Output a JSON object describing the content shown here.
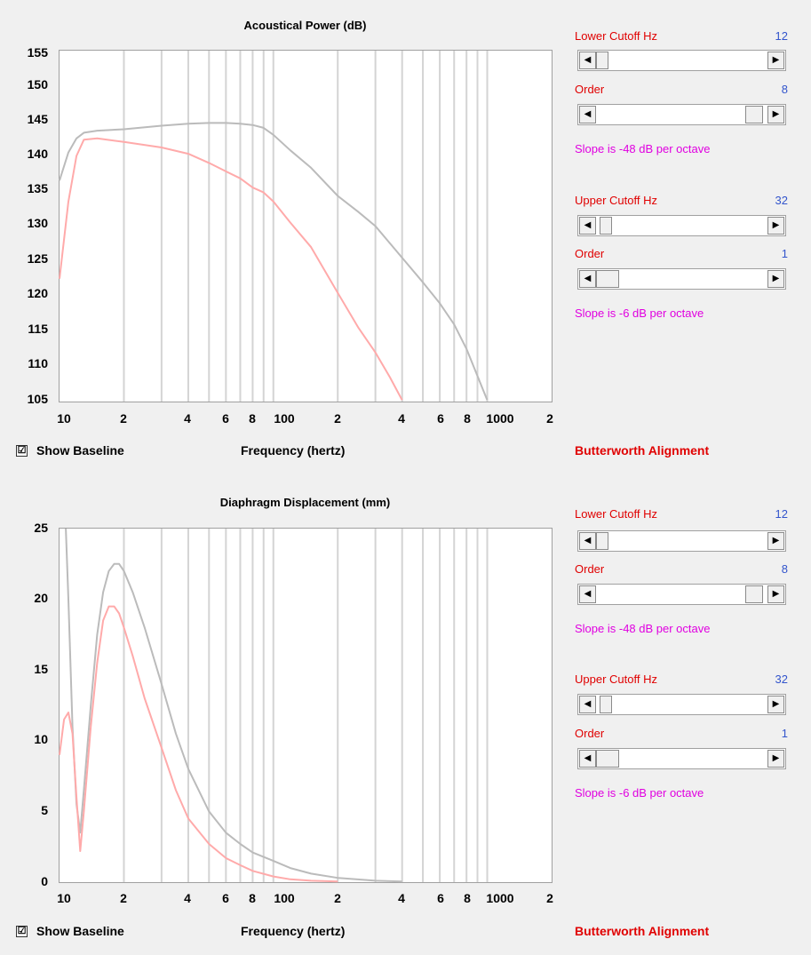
{
  "panels": [
    {
      "title": "Acoustical Power (dB)",
      "y_ticks": [
        "155",
        "150",
        "145",
        "140",
        "135",
        "130",
        "125",
        "120",
        "115",
        "110",
        "105"
      ],
      "x_ticks": [
        "10",
        "2",
        "4",
        "6",
        "8",
        "100",
        "2",
        "4",
        "6",
        "8",
        "1000",
        "2"
      ],
      "xlabel": "Frequency (hertz)",
      "baseline_label": "Show Baseline",
      "baseline_checked": "☑",
      "alignment_label": "Butterworth Alignment",
      "controls": {
        "lower_cutoff_label": "Lower Cutoff  Hz",
        "lower_cutoff_value": "12",
        "lower_order_label": "Order",
        "lower_order_value": "8",
        "lower_slope": "Slope is -48 dB per octave",
        "upper_cutoff_label": "Upper Cutoff  Hz",
        "upper_cutoff_value": "32",
        "upper_order_label": "Order",
        "upper_order_value": "1",
        "upper_slope": "Slope is -6 dB per octave"
      }
    },
    {
      "title": "Diaphragm Displacement (mm)",
      "y_ticks": [
        "25",
        "20",
        "15",
        "10",
        "5",
        "0"
      ],
      "x_ticks": [
        "10",
        "2",
        "4",
        "6",
        "8",
        "100",
        "2",
        "4",
        "6",
        "8",
        "1000",
        "2"
      ],
      "xlabel": "Frequency (hertz)",
      "baseline_label": "Show Baseline",
      "baseline_checked": "☑",
      "alignment_label": "Butterworth Alignment",
      "controls": {
        "lower_cutoff_label": "Lower Cutoff  Hz",
        "lower_cutoff_value": "12",
        "lower_order_label": "Order",
        "lower_order_value": "8",
        "lower_slope": "Slope is -48 dB per octave",
        "upper_cutoff_label": "Upper Cutoff  Hz",
        "upper_cutoff_value": "32",
        "upper_order_label": "Order",
        "upper_order_value": "1",
        "upper_slope": "Slope is -6 dB per octave"
      }
    }
  ],
  "colors": {
    "baseline": "#bbbbbb",
    "response": "#ffaaaa",
    "grid": "#d4d4d4",
    "label_red": "#e00000",
    "value_blue": "#3355cc",
    "slope_magenta": "#e000e0"
  },
  "chart_data": [
    {
      "type": "line",
      "title": "Acoustical Power (dB)",
      "xlabel": "Frequency (hertz)",
      "ylabel": "",
      "xscale": "log",
      "xlim": [
        10,
        2000
      ],
      "ylim": [
        105,
        155
      ],
      "grid": true,
      "series": [
        {
          "color": "#bbbbbb",
          "x": [
            10,
            11,
            12,
            13,
            15,
            20,
            30,
            40,
            50,
            60,
            70,
            80,
            90,
            100,
            120,
            150,
            200,
            250,
            300,
            400,
            500,
            600,
            700,
            800,
            1000
          ],
          "y": [
            136.5,
            140.5,
            142.5,
            143.3,
            143.6,
            143.8,
            144.3,
            144.6,
            144.7,
            144.7,
            144.6,
            144.4,
            144.0,
            143.0,
            140.8,
            138.3,
            134.3,
            132.0,
            130.0,
            125.5,
            122.0,
            119.0,
            116.0,
            112.5,
            105.2
          ]
        },
        {
          "color": "#ffaaaa",
          "x": [
            10,
            11,
            12,
            13,
            15,
            20,
            30,
            40,
            50,
            60,
            70,
            80,
            90,
            100,
            120,
            150,
            200,
            250,
            300,
            350,
            400
          ],
          "y": [
            122.5,
            133.5,
            140.0,
            142.3,
            142.5,
            142.0,
            141.2,
            140.3,
            139.0,
            137.8,
            136.8,
            135.5,
            134.8,
            133.5,
            130.5,
            127.0,
            120.5,
            115.5,
            112.0,
            108.5,
            105.2
          ]
        }
      ]
    },
    {
      "type": "line",
      "title": "Diaphragm Displacement (mm)",
      "xlabel": "Frequency (hertz)",
      "ylabel": "",
      "xscale": "log",
      "xlim": [
        10,
        2000
      ],
      "ylim": [
        0,
        25
      ],
      "grid": true,
      "series": [
        {
          "color": "#bbbbbb",
          "x": [
            10.7,
            11.0,
            11.5,
            12.0,
            12.5,
            13.0,
            14.0,
            15.0,
            16.0,
            17.0,
            18.0,
            19.0,
            20.0,
            22.0,
            25.0,
            30.0,
            35.0,
            40.0,
            50.0,
            60.0,
            70.0,
            80.0,
            100.0,
            120.0,
            150.0,
            200.0,
            300.0,
            400.0
          ],
          "y": [
            25.0,
            20.0,
            11.0,
            5.5,
            3.5,
            6.5,
            12.5,
            17.5,
            20.5,
            22.0,
            22.5,
            22.5,
            22.0,
            20.5,
            18.0,
            14.0,
            10.5,
            8.0,
            5.0,
            3.5,
            2.7,
            2.1,
            1.5,
            1.0,
            0.6,
            0.3,
            0.1,
            0.05
          ]
        },
        {
          "color": "#ffaaaa",
          "x": [
            10.0,
            10.5,
            11.0,
            11.5,
            12.0,
            12.5,
            13.0,
            14.0,
            15.0,
            16.0,
            17.0,
            18.0,
            19.0,
            20.0,
            22.0,
            25.0,
            30.0,
            35.0,
            40.0,
            50.0,
            60.0,
            70.0,
            80.0,
            100.0,
            120.0,
            150.0,
            200.0
          ],
          "y": [
            9.0,
            11.5,
            12.0,
            10.5,
            6.0,
            2.2,
            5.0,
            11.0,
            15.5,
            18.5,
            19.5,
            19.5,
            19.0,
            18.0,
            16.0,
            13.0,
            9.5,
            6.5,
            4.5,
            2.7,
            1.7,
            1.2,
            0.8,
            0.4,
            0.2,
            0.1,
            0.05
          ]
        }
      ]
    }
  ]
}
